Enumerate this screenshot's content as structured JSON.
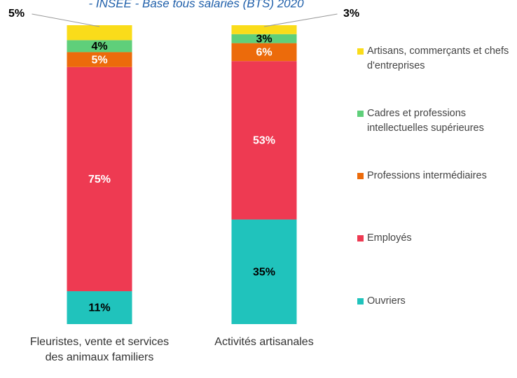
{
  "chart_data": {
    "type": "stacked_bar",
    "title": "- INSEE - Base tous salariés (BTS) 2020",
    "categories": [
      "Fleuristes, vente et services des animaux familiers",
      "Activités artisanales"
    ],
    "ylim": [
      0,
      100
    ],
    "series": [
      {
        "name": "Ouvriers",
        "color": "#20c3bc",
        "label_color": "#000000",
        "values": [
          11,
          35
        ],
        "value_labels": [
          "11%",
          "35%"
        ]
      },
      {
        "name": "Employés",
        "color": "#ee3a52",
        "label_color": "#ffffff",
        "values": [
          75,
          53
        ],
        "value_labels": [
          "75%",
          "53%"
        ]
      },
      {
        "name": "Professions intermédiaires",
        "color": "#ec6b0b",
        "label_color": "#ffffff",
        "values": [
          5,
          6
        ],
        "value_labels": [
          "5%",
          "6%"
        ]
      },
      {
        "name": "Cadres et professions intellectuelles supérieures",
        "color": "#5fcf7a",
        "label_color": "#000000",
        "values": [
          4,
          3
        ],
        "value_labels": [
          "4%",
          "3%"
        ]
      },
      {
        "name": "Artisans, commerçants et chefs d'entreprises",
        "color": "#fadc1a",
        "label_color": "#000000",
        "values": [
          5,
          3
        ],
        "value_labels": [
          "5%",
          "3%"
        ]
      }
    ]
  }
}
